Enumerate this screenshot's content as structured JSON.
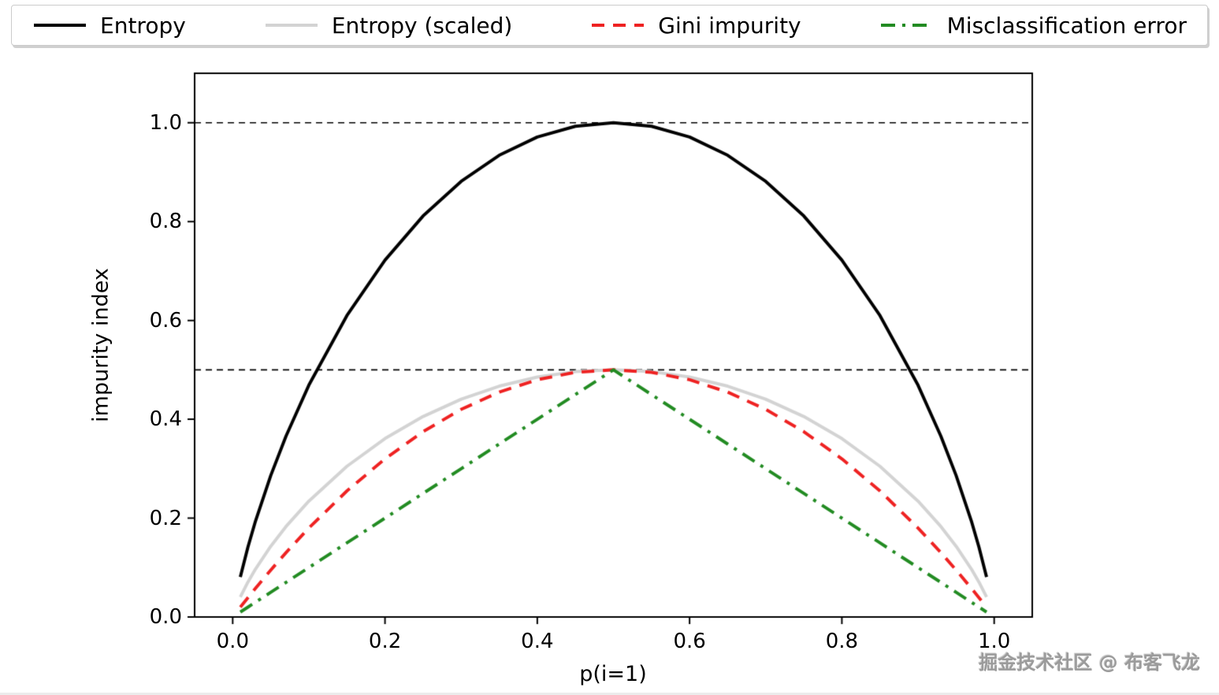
{
  "watermark": {
    "text": "掘金技术社区 @ 布客飞龙"
  },
  "chart_data": {
    "type": "line",
    "title": "",
    "xlabel": "p(i=1)",
    "ylabel": "impurity index",
    "xlim": [
      -0.05,
      1.05
    ],
    "ylim": [
      0,
      1.1
    ],
    "xticks": [
      0.0,
      0.2,
      0.4,
      0.6,
      0.8,
      1.0
    ],
    "xtick_labels": [
      "0.0",
      "0.2",
      "0.4",
      "0.6",
      "0.8",
      "1.0"
    ],
    "yticks": [
      0.0,
      0.2,
      0.4,
      0.6,
      0.8,
      1.0
    ],
    "ytick_labels": [
      "0.0",
      "0.2",
      "0.4",
      "0.6",
      "0.8",
      "1.0"
    ],
    "hlines": [
      0.5,
      1.0
    ],
    "grid": false,
    "legend_position": "top-outside-horizontal",
    "x": [
      0.01,
      0.02,
      0.03,
      0.05,
      0.07,
      0.1,
      0.15,
      0.2,
      0.25,
      0.3,
      0.35,
      0.4,
      0.45,
      0.5,
      0.55,
      0.6,
      0.65,
      0.7,
      0.75,
      0.8,
      0.85,
      0.9,
      0.93,
      0.95,
      0.97,
      0.98,
      0.99
    ],
    "series": [
      {
        "name": "Entropy",
        "color": "#000000",
        "linestyle": "solid",
        "linewidth": 4,
        "values": [
          0.0808,
          0.1414,
          0.1944,
          0.2864,
          0.3659,
          0.469,
          0.6098,
          0.7219,
          0.8113,
          0.8813,
          0.9341,
          0.971,
          0.9928,
          1.0,
          0.9928,
          0.971,
          0.9341,
          0.8813,
          0.8113,
          0.7219,
          0.6098,
          0.469,
          0.3659,
          0.2864,
          0.1944,
          0.1414,
          0.0808
        ]
      },
      {
        "name": "Entropy (scaled)",
        "color": "#d3d3d3",
        "linestyle": "solid",
        "linewidth": 4,
        "values": [
          0.0404,
          0.0707,
          0.0972,
          0.1432,
          0.183,
          0.2345,
          0.3049,
          0.361,
          0.4056,
          0.4406,
          0.467,
          0.4855,
          0.4964,
          0.5,
          0.4964,
          0.4855,
          0.467,
          0.4406,
          0.4056,
          0.361,
          0.3049,
          0.2345,
          0.183,
          0.1432,
          0.0972,
          0.0707,
          0.0404
        ]
      },
      {
        "name": "Gini impurity",
        "color": "#ee2222",
        "linestyle": "dashed",
        "linewidth": 4,
        "values": [
          0.0198,
          0.0392,
          0.0582,
          0.095,
          0.1302,
          0.18,
          0.255,
          0.32,
          0.375,
          0.42,
          0.455,
          0.48,
          0.495,
          0.5,
          0.495,
          0.48,
          0.455,
          0.42,
          0.375,
          0.32,
          0.255,
          0.18,
          0.1302,
          0.095,
          0.0582,
          0.0392,
          0.0198
        ]
      },
      {
        "name": "Misclassification error",
        "color": "#228b22",
        "linestyle": "dashdot",
        "linewidth": 4,
        "values": [
          0.01,
          0.02,
          0.03,
          0.05,
          0.07,
          0.1,
          0.15,
          0.2,
          0.25,
          0.3,
          0.35,
          0.4,
          0.45,
          0.5,
          0.45,
          0.4,
          0.35,
          0.3,
          0.25,
          0.2,
          0.15,
          0.1,
          0.07,
          0.05,
          0.03,
          0.02,
          0.01
        ]
      }
    ]
  }
}
